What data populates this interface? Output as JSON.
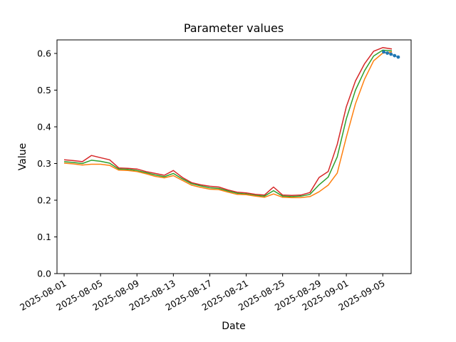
{
  "chart": {
    "title": "Parameter values",
    "xlabel": "Date",
    "ylabel": "Value"
  },
  "chart_data": {
    "type": "line",
    "title": "Parameter values",
    "xlabel": "Date",
    "ylabel": "Value",
    "ylim": [
      0.0,
      0.637
    ],
    "grid": false,
    "legend": "none",
    "x_tick_days": [
      0,
      4,
      8,
      12,
      16,
      20,
      24,
      28,
      31,
      35
    ],
    "x_tick_labels": [
      "2025-08-01",
      "2025-08-05",
      "2025-08-09",
      "2025-08-13",
      "2025-08-17",
      "2025-08-21",
      "2025-08-25",
      "2025-08-29",
      "2025-09-01",
      "2025-09-05"
    ],
    "y_ticks": [
      0.0,
      0.1,
      0.2,
      0.3,
      0.4,
      0.5,
      0.6
    ],
    "y_tick_labels": [
      "0.0",
      "0.1",
      "0.2",
      "0.3",
      "0.4",
      "0.5",
      "0.6"
    ],
    "x_unit": "days from 2025-08-01",
    "series": [
      {
        "name": "series-red",
        "color": "#d62728",
        "values": [
          0.31,
          0.308,
          0.305,
          0.322,
          0.316,
          0.31,
          0.288,
          0.287,
          0.285,
          0.278,
          0.273,
          0.268,
          0.281,
          0.262,
          0.248,
          0.242,
          0.238,
          0.236,
          0.228,
          0.222,
          0.22,
          0.216,
          0.214,
          0.236,
          0.214,
          0.213,
          0.214,
          0.221,
          0.262,
          0.278,
          0.352,
          0.455,
          0.525,
          0.572,
          0.606,
          0.616,
          0.612
        ]
      },
      {
        "name": "series-green",
        "color": "#2ca02c",
        "values": [
          0.305,
          0.303,
          0.3,
          0.309,
          0.306,
          0.301,
          0.285,
          0.284,
          0.281,
          0.275,
          0.269,
          0.264,
          0.273,
          0.258,
          0.245,
          0.239,
          0.234,
          0.232,
          0.225,
          0.219,
          0.217,
          0.213,
          0.211,
          0.226,
          0.211,
          0.21,
          0.211,
          0.216,
          0.242,
          0.263,
          0.318,
          0.422,
          0.5,
          0.553,
          0.593,
          0.609,
          0.607
        ]
      },
      {
        "name": "series-orange",
        "color": "#ff7f0e",
        "values": [
          0.301,
          0.299,
          0.296,
          0.298,
          0.298,
          0.295,
          0.282,
          0.281,
          0.278,
          0.272,
          0.265,
          0.261,
          0.267,
          0.254,
          0.241,
          0.235,
          0.23,
          0.229,
          0.222,
          0.216,
          0.215,
          0.211,
          0.208,
          0.217,
          0.208,
          0.207,
          0.207,
          0.21,
          0.223,
          0.241,
          0.274,
          0.372,
          0.463,
          0.53,
          0.58,
          0.601,
          0.604
        ]
      }
    ],
    "scatter": {
      "name": "forecast-markers",
      "color": "#1f77b4",
      "points": [
        [
          35.1,
          0.604
        ],
        [
          35.5,
          0.601
        ],
        [
          35.9,
          0.598
        ],
        [
          36.3,
          0.594
        ],
        [
          36.7,
          0.59
        ]
      ]
    }
  }
}
